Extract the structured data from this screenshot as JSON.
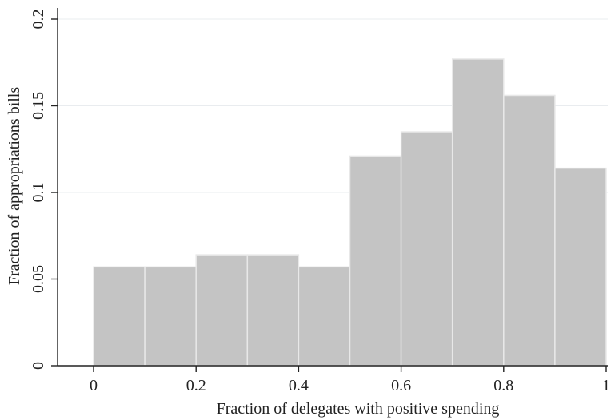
{
  "chart_data": {
    "type": "bar",
    "subtype": "histogram",
    "bins": [
      {
        "x0": 0.0,
        "x1": 0.1,
        "value": 0.057
      },
      {
        "x0": 0.1,
        "x1": 0.2,
        "value": 0.057
      },
      {
        "x0": 0.2,
        "x1": 0.3,
        "value": 0.064
      },
      {
        "x0": 0.3,
        "x1": 0.4,
        "value": 0.064
      },
      {
        "x0": 0.4,
        "x1": 0.5,
        "value": 0.057
      },
      {
        "x0": 0.5,
        "x1": 0.6,
        "value": 0.121
      },
      {
        "x0": 0.6,
        "x1": 0.7,
        "value": 0.135
      },
      {
        "x0": 0.7,
        "x1": 0.8,
        "value": 0.177
      },
      {
        "x0": 0.8,
        "x1": 0.9,
        "value": 0.156
      },
      {
        "x0": 0.9,
        "x1": 1.0,
        "value": 0.114
      }
    ],
    "xlabel": "Fraction of delegates with positive spending",
    "ylabel": "Fraction of appropriations bills",
    "xlim": [
      -0.07,
      1.0
    ],
    "ylim": [
      0,
      0.2
    ],
    "xticks": [
      0,
      0.2,
      0.4,
      0.6,
      0.8,
      1
    ],
    "xtick_labels": [
      "0",
      "0.2",
      "0.4",
      "0.6",
      "0.8",
      "1"
    ],
    "yticks": [
      0,
      0.05,
      0.1,
      0.15,
      0.2
    ],
    "ytick_labels": [
      "0",
      "0.05",
      "0.1",
      "0.15",
      "0.2"
    ],
    "grid": "horizontal",
    "bar_color": "#c4c4c4",
    "bar_edge_color": "#e8e8e8"
  }
}
